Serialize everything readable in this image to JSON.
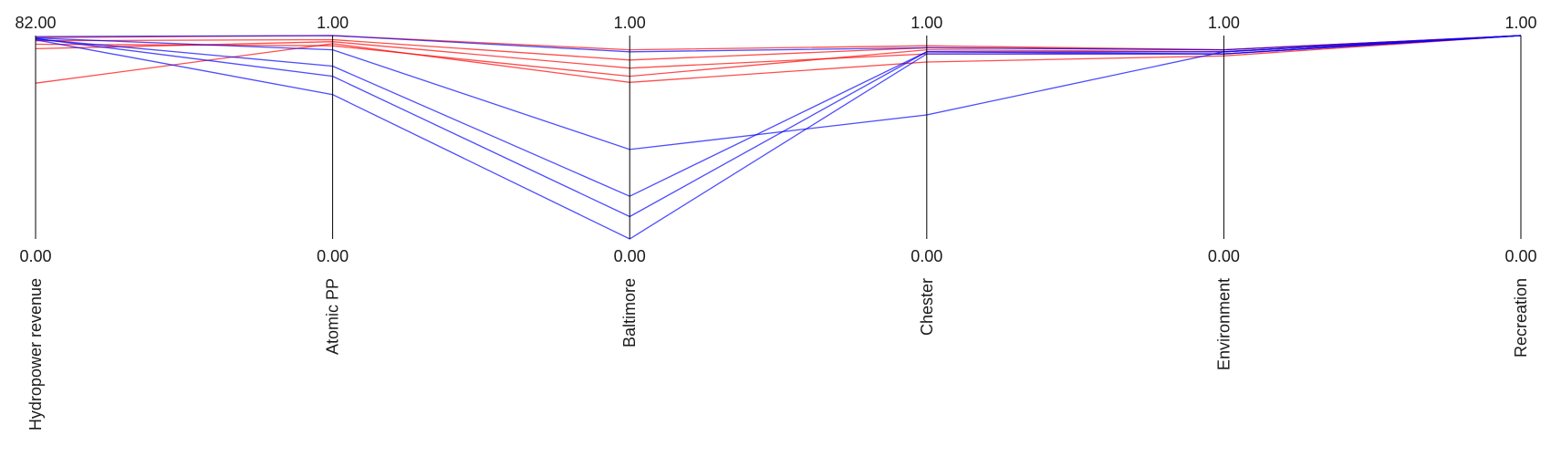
{
  "chart_data": {
    "type": "parallel-coordinates",
    "axes": [
      {
        "name": "Hydropower revenue",
        "max_label": "82.00",
        "min_label": "0.00",
        "range": [
          0,
          82
        ]
      },
      {
        "name": "Atomic PP",
        "max_label": "1.00",
        "min_label": "0.00",
        "range": [
          0,
          1
        ]
      },
      {
        "name": "Baltimore",
        "max_label": "1.00",
        "min_label": "0.00",
        "range": [
          0,
          1
        ]
      },
      {
        "name": "Chester",
        "max_label": "1.00",
        "min_label": "0.00",
        "range": [
          0,
          1
        ]
      },
      {
        "name": "Environment",
        "max_label": "1.00",
        "min_label": "0.00",
        "range": [
          0,
          1
        ]
      },
      {
        "name": "Recreation",
        "max_label": "1.00",
        "min_label": "0.00",
        "range": [
          0,
          1
        ]
      }
    ],
    "colors": {
      "red": "#ff0000",
      "blue": "#0000ff",
      "axis": "#000000"
    },
    "series": [
      {
        "color": "red",
        "values": [
          81.2,
          1.0,
          0.93,
          0.95,
          0.93,
          1.0
        ]
      },
      {
        "color": "red",
        "values": [
          79.9,
          0.98,
          0.88,
          0.94,
          0.93,
          1.0
        ]
      },
      {
        "color": "red",
        "values": [
          78.5,
          0.95,
          0.8,
          0.93,
          0.92,
          1.0
        ]
      },
      {
        "color": "red",
        "values": [
          76.7,
          0.97,
          0.84,
          0.91,
          0.91,
          1.0
        ]
      },
      {
        "color": "red",
        "values": [
          62.8,
          0.96,
          0.77,
          0.87,
          0.9,
          1.0
        ]
      },
      {
        "color": "blue",
        "values": [
          81.6,
          1.0,
          0.92,
          0.94,
          0.93,
          1.0
        ]
      },
      {
        "color": "blue",
        "values": [
          81.0,
          0.93,
          0.44,
          0.61,
          0.92,
          1.0
        ]
      },
      {
        "color": "blue",
        "values": [
          80.6,
          0.85,
          0.21,
          0.92,
          0.92,
          1.0
        ]
      },
      {
        "color": "blue",
        "values": [
          80.8,
          0.8,
          0.11,
          0.92,
          0.91,
          1.0
        ]
      },
      {
        "color": "blue",
        "values": [
          80.3,
          0.71,
          0.0,
          0.91,
          0.91,
          1.0
        ]
      }
    ]
  }
}
